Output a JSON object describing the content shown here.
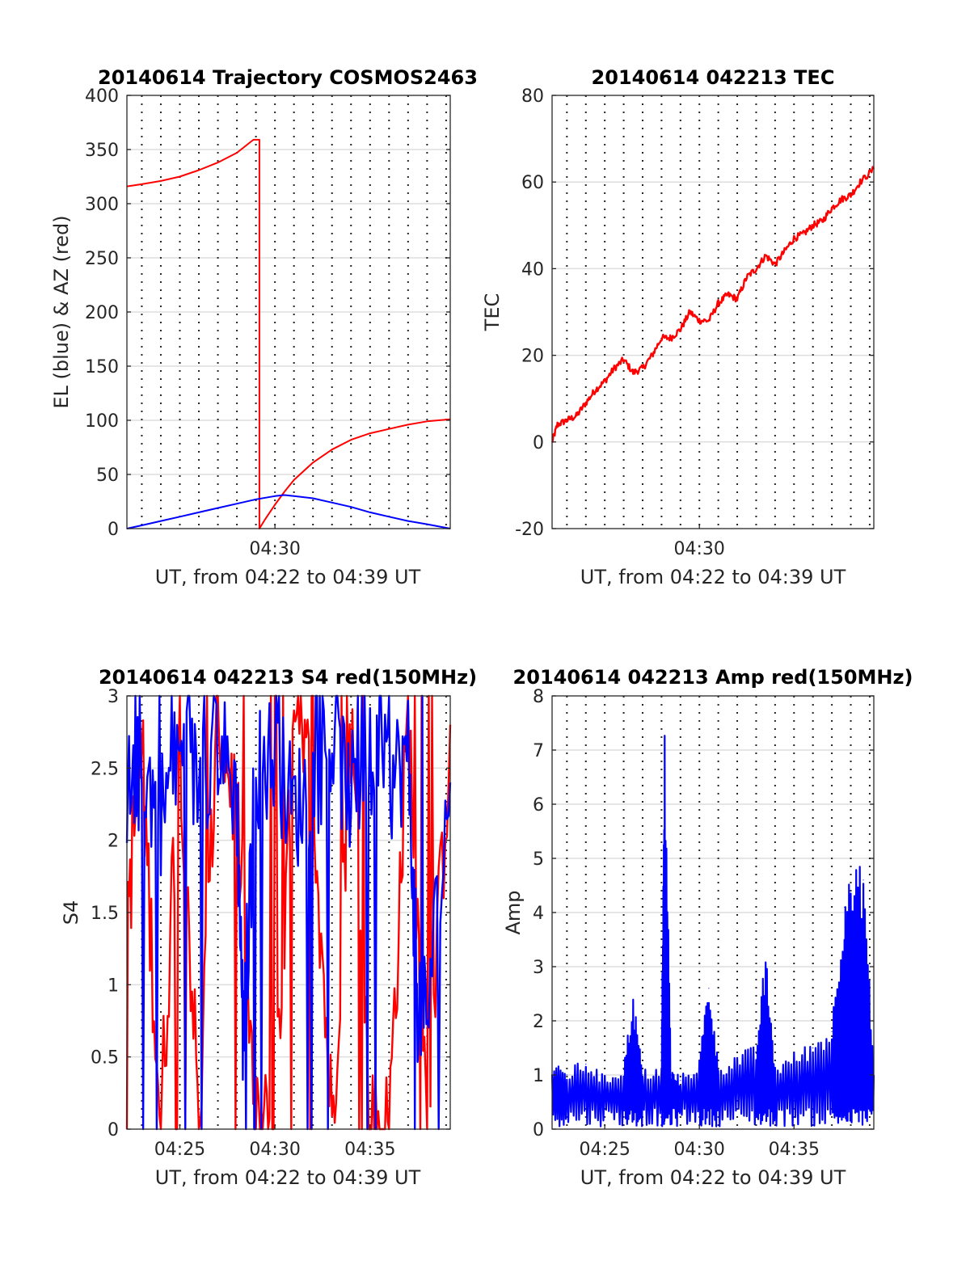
{
  "figure": {
    "background": "#ffffff"
  },
  "colors": {
    "red": "#ff0000",
    "blue": "#0000ff"
  },
  "chart_data": [
    {
      "id": "traj",
      "type": "line",
      "title": "20140614 Trajectory COSMOS2463",
      "xlabel": "UT, from 04:22 to 04:39 UT",
      "ylabel": "EL (blue) & AZ (red)",
      "xlim": [
        "04:22:13",
        "04:39:13"
      ],
      "ylim": [
        0,
        400
      ],
      "yticks": [
        0,
        50,
        100,
        150,
        200,
        250,
        300,
        350,
        400
      ],
      "xticks": [
        "04:30"
      ],
      "grid": true,
      "series": [
        {
          "name": "AZ (red)",
          "color": "#ff0000",
          "x": [
            "04:22:13",
            "04:23:00",
            "04:24:00",
            "04:25:00",
            "04:26:00",
            "04:27:00",
            "04:28:00",
            "04:28:52",
            "04:29:11",
            "04:29:11",
            "04:29:30",
            "04:30:00",
            "04:30:30",
            "04:31:00",
            "04:32:00",
            "04:33:00",
            "04:34:00",
            "04:35:00",
            "04:36:00",
            "04:37:00",
            "04:38:00",
            "04:39:13"
          ],
          "values": [
            316,
            318,
            321,
            325,
            331,
            338,
            347,
            359,
            359,
            0,
            9,
            22,
            34,
            45,
            61,
            73,
            82,
            88,
            92,
            96,
            99,
            101
          ]
        },
        {
          "name": "EL (blue)",
          "color": "#0000ff",
          "x": [
            "04:22:13",
            "04:23:00",
            "04:24:00",
            "04:25:00",
            "04:26:00",
            "04:27:00",
            "04:28:00",
            "04:29:00",
            "04:30:00",
            "04:30:30",
            "04:31:00",
            "04:32:00",
            "04:33:00",
            "04:34:00",
            "04:35:00",
            "04:36:00",
            "04:37:00",
            "04:38:00",
            "04:39:13"
          ],
          "values": [
            0,
            3,
            7,
            11,
            15,
            19,
            23,
            27,
            30,
            31,
            30,
            28,
            24,
            20,
            15,
            11,
            7,
            4,
            0
          ]
        }
      ]
    },
    {
      "id": "tec",
      "type": "line",
      "title": "20140614 042213 TEC",
      "xlabel": "UT, from 04:22 to 04:39 UT",
      "ylabel": "TEC",
      "xlim": [
        "04:22:13",
        "04:39:13"
      ],
      "ylim": [
        -20,
        80
      ],
      "yticks": [
        -20,
        0,
        20,
        40,
        60,
        80
      ],
      "xticks": [
        "04:30"
      ],
      "grid": true,
      "series": [
        {
          "name": "",
          "color": "#ff0000",
          "x": [
            "04:22:13",
            "04:22:30",
            "04:23:00",
            "04:23:30",
            "04:24:00",
            "04:24:30",
            "04:25:00",
            "04:25:30",
            "04:26:00",
            "04:26:30",
            "04:27:00",
            "04:27:30",
            "04:28:00",
            "04:28:30",
            "04:29:00",
            "04:29:30",
            "04:30:00",
            "04:30:30",
            "04:31:00",
            "04:31:30",
            "04:32:00",
            "04:32:30",
            "04:33:00",
            "04:33:30",
            "04:34:00",
            "04:34:30",
            "04:35:00",
            "04:35:30",
            "04:36:00",
            "04:36:30",
            "04:37:00",
            "04:37:30",
            "04:38:00",
            "04:38:30",
            "04:39:13"
          ],
          "values": [
            0,
            4,
            5,
            6,
            9,
            12,
            14,
            17,
            19,
            16,
            17,
            20,
            24,
            24,
            26,
            30,
            28,
            28,
            32,
            34,
            33,
            38,
            40,
            43,
            41,
            44,
            47,
            48,
            50,
            51,
            54,
            56,
            57,
            60,
            63
          ]
        }
      ]
    },
    {
      "id": "s4",
      "type": "line",
      "title": "20140614 042213 S4 red(150MHz)",
      "xlabel": "UT, from 04:22 to 04:39 UT",
      "ylabel": "S4",
      "xlim": [
        "04:22:13",
        "04:39:13"
      ],
      "ylim": [
        0,
        3
      ],
      "yticks": [
        0,
        0.5,
        1,
        1.5,
        2,
        2.5,
        3
      ],
      "xticks": [
        "04:25",
        "04:30",
        "04:35"
      ],
      "grid": true,
      "series": [
        {
          "name": "red (150MHz)",
          "color": "#ff0000",
          "x": [
            "04:22:13",
            "04:23:00",
            "04:24:00",
            "04:25:00",
            "04:26:00",
            "04:27:00",
            "04:28:00",
            "04:29:00",
            "04:30:00",
            "04:31:00",
            "04:32:00",
            "04:33:00",
            "04:34:00",
            "04:35:00",
            "04:36:00",
            "04:37:00",
            "04:38:00",
            "04:39:13"
          ],
          "values": [
            1.5,
            2.6,
            0,
            2.8,
            0,
            2.9,
            2.2,
            0,
            0,
            2.7,
            2.4,
            0,
            2.8,
            0,
            0,
            2.9,
            0,
            2.8
          ]
        },
        {
          "name": "blue",
          "color": "#0000ff",
          "x": [
            "04:22:13",
            "04:23:00",
            "04:24:00",
            "04:25:00",
            "04:26:00",
            "04:27:00",
            "04:28:00",
            "04:28:20",
            "04:29:00",
            "04:30:00",
            "04:31:00",
            "04:32:00",
            "04:33:00",
            "04:34:00",
            "04:35:00",
            "04:36:00",
            "04:37:00",
            "04:37:30",
            "04:38:00",
            "04:39:13"
          ],
          "values": [
            2.3,
            2.5,
            2.2,
            2.6,
            2.4,
            2.7,
            2.3,
            0.6,
            2.5,
            2.6,
            2.2,
            2.4,
            2.7,
            2.3,
            2.5,
            2.4,
            2.6,
            0.9,
            0.8,
            2.4
          ]
        }
      ]
    },
    {
      "id": "amp",
      "type": "line",
      "title": "20140614 042213 Amp red(150MHz)",
      "xlabel": "UT, from 04:22 to 04:39 UT",
      "ylabel": "Amp",
      "xlim": [
        "04:22:13",
        "04:39:13"
      ],
      "ylim": [
        0,
        8
      ],
      "yticks": [
        0,
        1,
        2,
        3,
        4,
        5,
        6,
        7,
        8
      ],
      "xticks": [
        "04:25",
        "04:30",
        "04:35"
      ],
      "grid": true,
      "series": [
        {
          "name": "blue",
          "color": "#0000ff",
          "x": [
            "04:22:13",
            "04:23:00",
            "04:24:00",
            "04:25:00",
            "04:26:00",
            "04:26:30",
            "04:27:00",
            "04:28:00",
            "04:28:10",
            "04:28:30",
            "04:29:00",
            "04:30:00",
            "04:30:30",
            "04:31:00",
            "04:32:00",
            "04:33:00",
            "04:33:30",
            "04:34:00",
            "04:35:00",
            "04:36:00",
            "04:37:00",
            "04:37:40",
            "04:38:00",
            "04:38:40",
            "04:39:13"
          ],
          "values": [
            1.1,
            1.0,
            1.2,
            0.9,
            1.1,
            2.3,
            1.0,
            1.1,
            6.8,
            1.0,
            0.9,
            1.2,
            2.6,
            1.1,
            1.3,
            1.4,
            3.0,
            1.1,
            1.3,
            1.5,
            1.8,
            4.1,
            4.2,
            4.6,
            1.0
          ]
        }
      ]
    }
  ]
}
